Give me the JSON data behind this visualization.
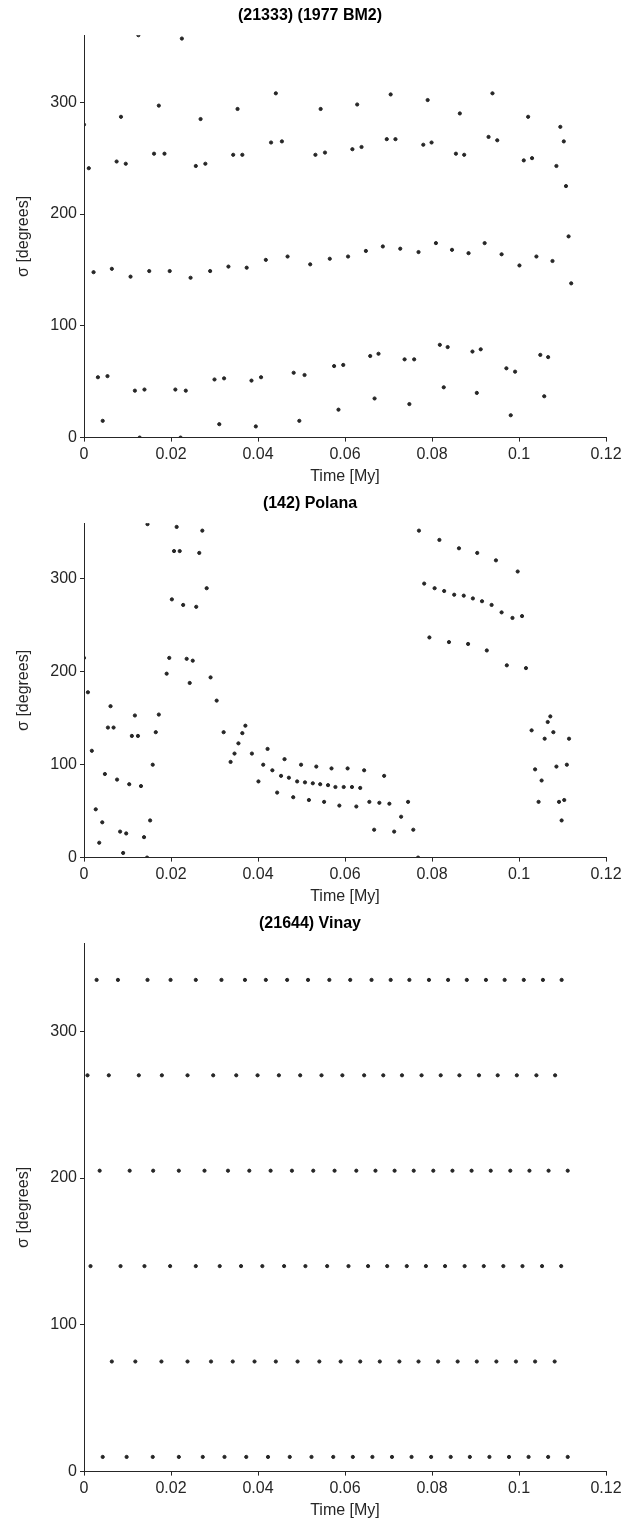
{
  "chart_data": [
    {
      "type": "scatter",
      "title": "(21333) (1977 BM2)",
      "xlabel": "Time [My]",
      "ylabel": "σ [degrees]",
      "color": "#262626",
      "marker": "circle",
      "grid": false,
      "legend": false,
      "xlim": [
        0,
        0.12
      ],
      "ylim": [
        0,
        360
      ],
      "xticks": [
        0,
        0.02,
        0.04,
        0.06,
        0.08,
        0.1,
        0.12
      ],
      "yticks": [
        0,
        100,
        200,
        300
      ],
      "x": [
        0,
        0.0011,
        0.0022,
        0.0032,
        0.0043,
        0.0054,
        0.0064,
        0.0075,
        0.0085,
        0.0096,
        0.0107,
        0.0117,
        0.0128,
        0.0139,
        0.015,
        0.0161,
        0.0172,
        0.0185,
        0.0197,
        0.021,
        0.0222,
        0.0234,
        0.0245,
        0.0257,
        0.0268,
        0.0279,
        0.029,
        0.03,
        0.0311,
        0.0322,
        0.0332,
        0.0343,
        0.0353,
        0.0364,
        0.0374,
        0.0385,
        0.0395,
        0.0407,
        0.0418,
        0.043,
        0.0441,
        0.0455,
        0.0468,
        0.0482,
        0.0495,
        0.0507,
        0.052,
        0.0532,
        0.0544,
        0.0554,
        0.0565,
        0.0575,
        0.0585,
        0.0596,
        0.0607,
        0.0617,
        0.0628,
        0.0638,
        0.0648,
        0.0658,
        0.0668,
        0.0677,
        0.0687,
        0.0696,
        0.0705,
        0.0716,
        0.0727,
        0.0737,
        0.0748,
        0.0759,
        0.0769,
        0.078,
        0.079,
        0.0799,
        0.0809,
        0.0818,
        0.0827,
        0.0836,
        0.0846,
        0.0855,
        0.0864,
        0.0874,
        0.0884,
        0.0893,
        0.0903,
        0.0912,
        0.0921,
        0.093,
        0.0939,
        0.095,
        0.096,
        0.0971,
        0.0981,
        0.0991,
        0.1001,
        0.1011,
        0.1021,
        0.103,
        0.104,
        0.1049,
        0.1058,
        0.1067,
        0.1077,
        0.1086,
        0.1095,
        0.1103,
        0.1108,
        0.1114,
        0.112,
        0.0125,
        0.0225
      ],
      "values": [
        280,
        241,
        148,
        54,
        15,
        55,
        151,
        247,
        287,
        245,
        144,
        42,
        0,
        43,
        149,
        254,
        297,
        254,
        149,
        43,
        0,
        42,
        143,
        243,
        285,
        245,
        149,
        52,
        12,
        53,
        153,
        253,
        294,
        253,
        152,
        51,
        10,
        54,
        159,
        264,
        308,
        265,
        162,
        58,
        15,
        56,
        155,
        253,
        294,
        255,
        160,
        64,
        25,
        65,
        162,
        258,
        298,
        260,
        167,
        73,
        35,
        75,
        171,
        267,
        307,
        267,
        169,
        70,
        30,
        70,
        166,
        262,
        302,
        264,
        174,
        83,
        45,
        81,
        168,
        254,
        290,
        253,
        165,
        77,
        40,
        79,
        174,
        269,
        308,
        266,
        164,
        62,
        20,
        59,
        154,
        248,
        287,
        250,
        162,
        74,
        37,
        72,
        158,
        243,
        278,
        265,
        225,
        180,
        138,
        360,
        357
      ]
    },
    {
      "type": "scatter",
      "title": "(142) Polana",
      "xlabel": "Time [My]",
      "ylabel": "σ [degrees]",
      "color": "#262626",
      "marker": "circle",
      "grid": false,
      "legend": false,
      "xlim": [
        0,
        0.12
      ],
      "ylim": [
        0,
        360
      ],
      "xticks": [
        0,
        0.02,
        0.04,
        0.06,
        0.08,
        0.1,
        0.12
      ],
      "yticks": [
        0,
        100,
        200,
        300
      ],
      "x": [
        0,
        0.0009,
        0.0018,
        0.0027,
        0.0035,
        0.0042,
        0.0048,
        0.0055,
        0.0061,
        0.0068,
        0.0076,
        0.0083,
        0.009,
        0.0097,
        0.0104,
        0.011,
        0.0117,
        0.0124,
        0.0131,
        0.0138,
        0.0145,
        0.0152,
        0.0158,
        0.0165,
        0.0172,
        0.019,
        0.0196,
        0.0202,
        0.0207,
        0.0213,
        0.022,
        0.0228,
        0.0236,
        0.0243,
        0.025,
        0.0258,
        0.0265,
        0.0272,
        0.0282,
        0.0291,
        0.0305,
        0.0321,
        0.0337,
        0.0346,
        0.0355,
        0.0364,
        0.0371,
        0.0386,
        0.0401,
        0.0412,
        0.0422,
        0.0433,
        0.0444,
        0.0453,
        0.0461,
        0.0471,
        0.0481,
        0.049,
        0.0499,
        0.0508,
        0.0517,
        0.0526,
        0.0534,
        0.0543,
        0.0552,
        0.0561,
        0.0569,
        0.0578,
        0.0587,
        0.0597,
        0.0606,
        0.0616,
        0.0626,
        0.0635,
        0.0644,
        0.0656,
        0.0667,
        0.0679,
        0.069,
        0.0702,
        0.0713,
        0.0729,
        0.0745,
        0.0757,
        0.0768,
        0.0146,
        0.077,
        0.0782,
        0.0794,
        0.0806,
        0.0817,
        0.0828,
        0.0839,
        0.0851,
        0.0862,
        0.0873,
        0.0883,
        0.0894,
        0.0904,
        0.0915,
        0.0926,
        0.0937,
        0.0947,
        0.096,
        0.0972,
        0.0985,
        0.0997,
        0.1007,
        0.1016,
        0.1029,
        0.1037,
        0.1045,
        0.1052,
        0.1059,
        0.1066,
        0.1072,
        0.1079,
        0.1086,
        0.1092,
        0.1098,
        0.1104,
        0.111,
        0.1115
      ],
      "values": [
        215,
        178,
        115,
        52,
        16,
        38,
        90,
        140,
        163,
        140,
        84,
        28,
        5,
        26,
        79,
        131,
        153,
        131,
        77,
        22,
        0,
        40,
        100,
        135,
        154,
        198,
        215,
        278,
        330,
        356,
        330,
        272,
        214,
        188,
        212,
        270,
        328,
        352,
        290,
        194,
        169,
        135,
        103,
        112,
        123,
        134,
        142,
        112,
        82,
        100,
        117,
        94,
        70,
        88,
        106,
        86,
        65,
        82,
        100,
        81,
        62,
        80,
        98,
        79,
        60,
        78,
        96,
        76,
        56,
        76,
        96,
        76,
        55,
        75,
        94,
        60,
        30,
        59,
        88,
        58,
        28,
        44,
        60,
        30,
        0,
        359,
        352,
        295,
        237,
        290,
        342,
        287,
        232,
        283,
        333,
        282,
        230,
        279,
        328,
        276,
        223,
        272,
        320,
        264,
        207,
        258,
        308,
        260,
        204,
        137,
        95,
        60,
        83,
        128,
        146,
        152,
        135,
        98,
        60,
        40,
        62,
        100,
        128
      ]
    },
    {
      "type": "scatter",
      "title": "(21644) Vinay",
      "xlabel": "Time [My]",
      "ylabel": "σ [degrees]",
      "color": "#262626",
      "marker": "circle",
      "grid": false,
      "legend": false,
      "xlim": [
        0,
        0.12
      ],
      "ylim": [
        0,
        360
      ],
      "xticks": [
        0,
        0.02,
        0.04,
        0.06,
        0.08,
        0.1,
        0.12
      ],
      "yticks": [
        0,
        100,
        200,
        300
      ],
      "x": [
        0.0008,
        0.0029,
        0.0015,
        0.0036,
        0.0057,
        0.0078,
        0.0043,
        0.0064,
        0.0084,
        0.0105,
        0.0126,
        0.0146,
        0.0098,
        0.0118,
        0.0139,
        0.0159,
        0.0179,
        0.0199,
        0.0158,
        0.0178,
        0.0198,
        0.0218,
        0.0238,
        0.0257,
        0.0218,
        0.0238,
        0.0257,
        0.0277,
        0.0297,
        0.0316,
        0.0273,
        0.0292,
        0.0312,
        0.0331,
        0.035,
        0.037,
        0.0323,
        0.0342,
        0.0361,
        0.038,
        0.0399,
        0.0418,
        0.0373,
        0.0392,
        0.041,
        0.0429,
        0.0448,
        0.0467,
        0.0423,
        0.0441,
        0.046,
        0.0478,
        0.0497,
        0.0515,
        0.0473,
        0.0491,
        0.0509,
        0.0527,
        0.0546,
        0.0564,
        0.0523,
        0.0541,
        0.0559,
        0.0576,
        0.0594,
        0.0612,
        0.0573,
        0.059,
        0.0608,
        0.0626,
        0.0644,
        0.0661,
        0.0618,
        0.0635,
        0.0653,
        0.067,
        0.0688,
        0.0705,
        0.0663,
        0.068,
        0.0697,
        0.0714,
        0.0731,
        0.0748,
        0.0708,
        0.0725,
        0.0742,
        0.0758,
        0.0776,
        0.0793,
        0.0753,
        0.0769,
        0.0786,
        0.0803,
        0.082,
        0.0837,
        0.0798,
        0.0814,
        0.083,
        0.0847,
        0.0863,
        0.088,
        0.0843,
        0.0859,
        0.0875,
        0.0891,
        0.0908,
        0.0924,
        0.0887,
        0.0903,
        0.0919,
        0.0935,
        0.0951,
        0.0967,
        0.0932,
        0.0948,
        0.0964,
        0.098,
        0.0995,
        0.1011,
        0.0977,
        0.0993,
        0.1008,
        0.1024,
        0.104,
        0.1055,
        0.1022,
        0.1037,
        0.1053,
        0.1068,
        0.1083,
        0.1098,
        0.1067,
        0.1082,
        0.1097,
        0.1112,
        0.1112
      ],
      "values": [
        270,
        335,
        140,
        205,
        270,
        335,
        10,
        75,
        140,
        205,
        270,
        335,
        10,
        75,
        140,
        205,
        270,
        335,
        10,
        75,
        140,
        205,
        270,
        335,
        10,
        75,
        140,
        205,
        270,
        335,
        10,
        75,
        140,
        205,
        270,
        335,
        10,
        75,
        140,
        205,
        270,
        335,
        10,
        75,
        140,
        205,
        270,
        335,
        10,
        75,
        140,
        205,
        270,
        335,
        10,
        75,
        140,
        205,
        270,
        335,
        10,
        75,
        140,
        205,
        270,
        335,
        10,
        75,
        140,
        205,
        270,
        335,
        10,
        75,
        140,
        205,
        270,
        335,
        10,
        75,
        140,
        205,
        270,
        335,
        10,
        75,
        140,
        205,
        270,
        335,
        10,
        75,
        140,
        205,
        270,
        335,
        10,
        75,
        140,
        205,
        270,
        335,
        10,
        75,
        140,
        205,
        270,
        335,
        10,
        75,
        140,
        205,
        270,
        335,
        10,
        75,
        140,
        205,
        270,
        335,
        10,
        75,
        140,
        205,
        270,
        335,
        10,
        75,
        140,
        205,
        270,
        335,
        10,
        75,
        140,
        205,
        10
      ]
    }
  ]
}
